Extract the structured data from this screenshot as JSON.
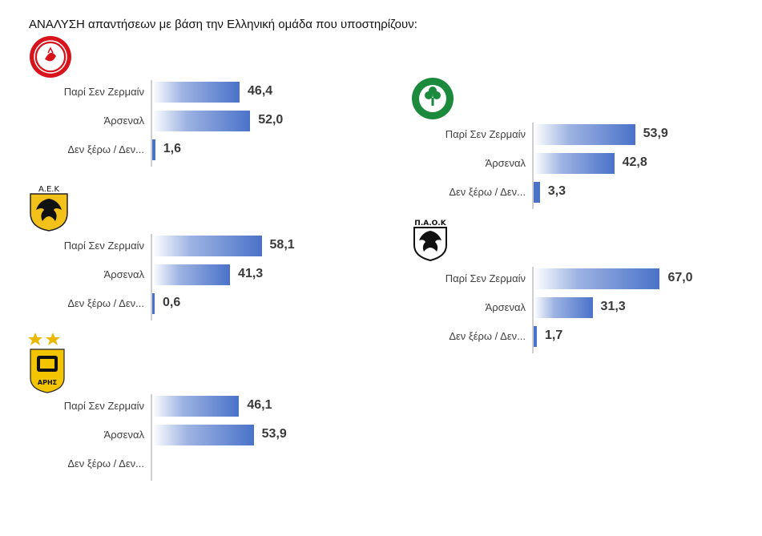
{
  "title": "ΑΝΑΛΥΣΗ απαντήσεων με βάση την Ελληνική ομάδα που υποστηρίζουν:",
  "chart_data": [
    {
      "type": "bar",
      "orientation": "horizontal",
      "logo": "olympiacos-crest-icon",
      "categories": [
        "Παρί Σεν Ζερμαίν",
        "Άρσεναλ",
        "Δεν ξέρω / Δεν..."
      ],
      "values": [
        46.4,
        52.0,
        1.6
      ],
      "value_labels": [
        "46,4",
        "52,0",
        "1,6"
      ],
      "xlim": [
        0,
        100
      ]
    },
    {
      "type": "bar",
      "orientation": "horizontal",
      "logo": "aek-crest-icon",
      "categories": [
        "Παρί Σεν Ζερμαίν",
        "Άρσεναλ",
        "Δεν ξέρω / Δεν..."
      ],
      "values": [
        58.1,
        41.3,
        0.6
      ],
      "value_labels": [
        "58,1",
        "41,3",
        "0,6"
      ],
      "xlim": [
        0,
        100
      ]
    },
    {
      "type": "bar",
      "orientation": "horizontal",
      "logo": "aris-crest-icon",
      "categories": [
        "Παρί Σεν Ζερμαίν",
        "Άρσεναλ",
        "Δεν ξέρω / Δεν..."
      ],
      "values": [
        46.1,
        53.9,
        0
      ],
      "value_labels": [
        "46,1",
        "53,9",
        ""
      ],
      "xlim": [
        0,
        100
      ]
    },
    {
      "type": "bar",
      "orientation": "horizontal",
      "logo": "panathinaikos-crest-icon",
      "categories": [
        "Παρί Σεν Ζερμαίν",
        "Άρσεναλ",
        "Δεν ξέρω / Δεν..."
      ],
      "values": [
        53.9,
        42.8,
        3.3
      ],
      "value_labels": [
        "53,9",
        "42,8",
        "3,3"
      ],
      "xlim": [
        0,
        100
      ]
    },
    {
      "type": "bar",
      "orientation": "horizontal",
      "logo": "paok-crest-icon",
      "categories": [
        "Παρί Σεν Ζερμαίν",
        "Άρσεναλ",
        "Δεν ξέρω / Δεν..."
      ],
      "values": [
        67.0,
        31.3,
        1.7
      ],
      "value_labels": [
        "67,0",
        "31,3",
        "1,7"
      ],
      "xlim": [
        0,
        100
      ]
    }
  ],
  "logo_colors": {
    "olympiacos": "#d7141c",
    "aek": "#f2c21b",
    "aris": "#f3c400",
    "panathinaikos": "#1b8a3c",
    "paok": "#111111"
  }
}
